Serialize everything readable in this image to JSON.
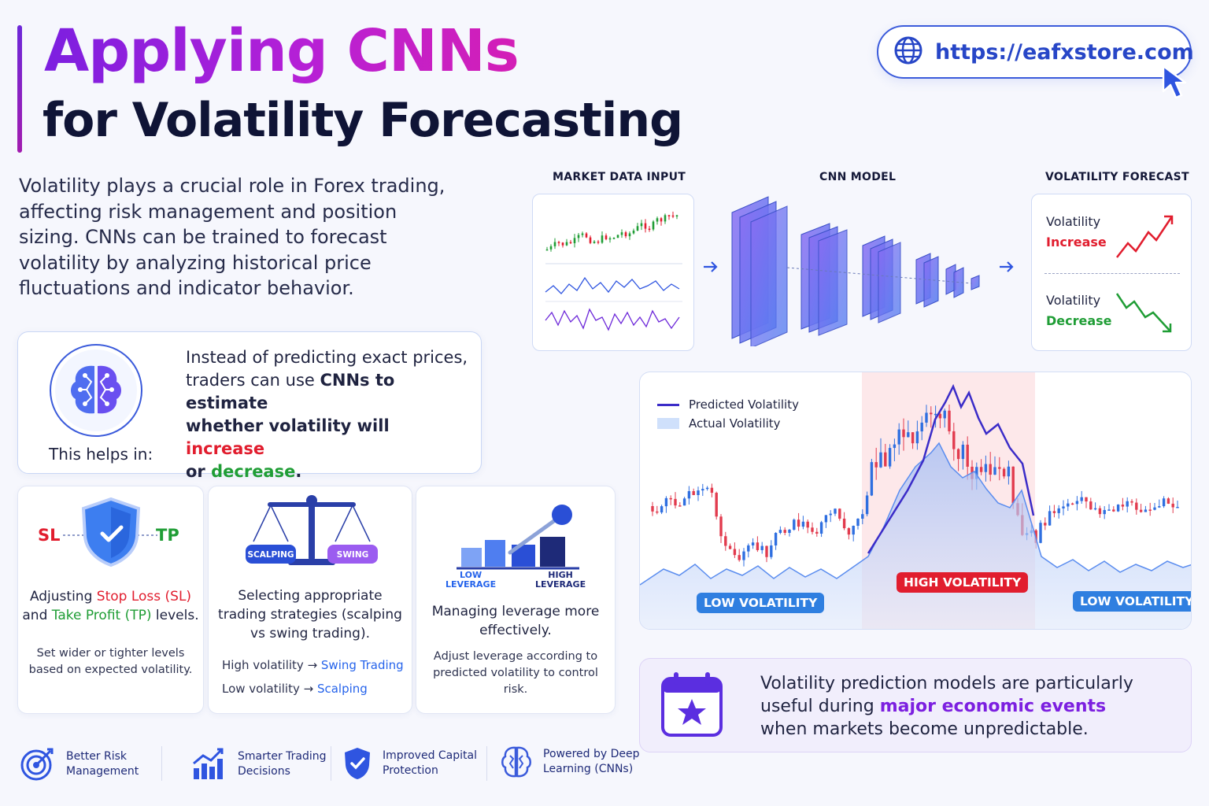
{
  "header": {
    "title_line1": "Applying CNNs",
    "title_line2": "for Volatility Forecasting",
    "url": "https://eafxstore.com"
  },
  "intro": "Volatility plays a crucial role in Forex trading, affecting risk management and position sizing. CNNs can be trained to forecast volatility by analyzing historical price fluctuations and indicator behavior.",
  "insight": {
    "line_a": "Instead of predicting exact prices,",
    "line_b_pre": "traders can use ",
    "line_b_bold": "CNNs to estimate",
    "line_c_bold": "whether volatility will ",
    "increase": "increase",
    "line_d_pre": "or ",
    "decrease": "decrease",
    "line_d_post": ".",
    "helps_in": "This helps in:"
  },
  "cards": {
    "sl": {
      "sl_tag": "SL",
      "tp_tag": "TP",
      "title_pre": "Adjusting ",
      "title_sl": "Stop Loss (SL)",
      "title_mid": "and ",
      "title_tp": "Take Profit (TP)",
      "title_post": " levels.",
      "note": "Set wider or tighter levels based on expected volatility."
    },
    "strategy": {
      "scale_left": "SCALPING",
      "scale_right": "SWING",
      "title": "Selecting appropriate trading strategies (scalping vs swing trading).",
      "row1_pre": "High volatility → ",
      "row1_val": "Swing Trading",
      "row2_pre": "Low volatility → ",
      "row2_val": "Scalping"
    },
    "leverage": {
      "low_1": "LOW",
      "low_2": "LEVERAGE",
      "high_1": "HIGH",
      "high_2": "LEVERAGE",
      "title": "Managing leverage more effectively.",
      "note": "Adjust leverage according to predicted volatility to control risk."
    }
  },
  "features": [
    {
      "label_1": "Better Risk",
      "label_2": "Management",
      "icon": "target-icon"
    },
    {
      "label_1": "Smarter Trading",
      "label_2": "Decisions",
      "icon": "bar-chart-icon"
    },
    {
      "label_1": "Improved Capital",
      "label_2": "Protection",
      "icon": "shield-check-icon"
    },
    {
      "label_1": "Powered by Deep",
      "label_2": "Learning (CNNs)",
      "icon": "brain-icon"
    }
  ],
  "pipeline": {
    "input_title": "MARKET DATA INPUT",
    "model_title": "CNN MODEL",
    "forecast_title": "VOLATILITY FORECAST",
    "vol_word": "Volatility",
    "increase": "Increase",
    "decrease": "Decrease"
  },
  "chart": {
    "legend_predicted": "Predicted Volatility",
    "legend_actual": "Actual Volatility",
    "low_left": "LOW VOLATILITY",
    "high": "HIGH VOLATILITY",
    "low_right": "LOW VOLATILITY"
  },
  "events": {
    "line1": "Volatility prediction models are particularly",
    "line2_pre": "useful during ",
    "line2_bold": "major economic events",
    "line3": "when markets become unpredictable."
  },
  "colors": {
    "brand_purple": "#7c1fe0",
    "brand_blue": "#2563eb",
    "increase_red": "#e11d2e",
    "decrease_green": "#1f9d35",
    "high_vol_zone": "#fde8ea"
  }
}
